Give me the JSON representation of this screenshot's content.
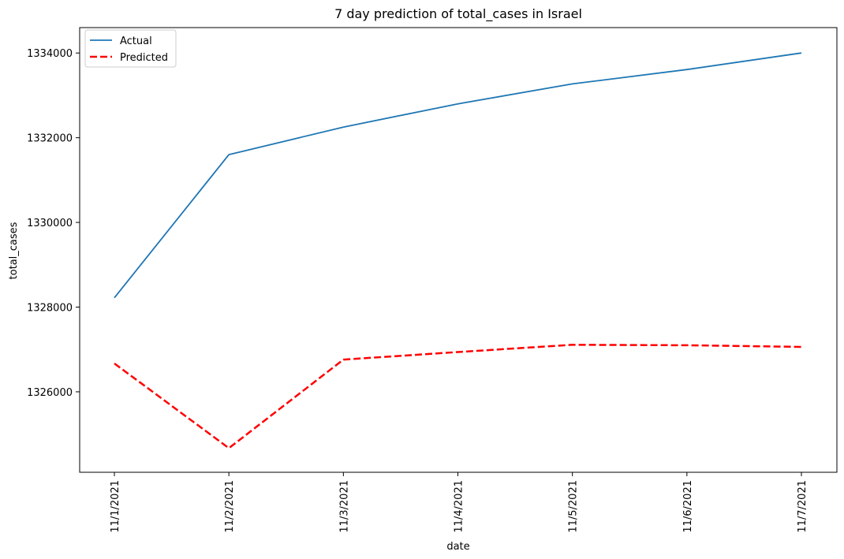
{
  "chart_data": {
    "type": "line",
    "title": "7 day prediction of total_cases in Israel",
    "xlabel": "date",
    "ylabel": "total_cases",
    "categories": [
      "11/1/2021",
      "11/2/2021",
      "11/3/2021",
      "11/4/2021",
      "11/5/2021",
      "11/6/2021",
      "11/7/2021"
    ],
    "y_ticks": [
      1326000,
      1328000,
      1330000,
      1332000,
      1334000
    ],
    "ylim": [
      1324100,
      1334600
    ],
    "legend": {
      "placement": "upper-left"
    },
    "grid": false,
    "series": [
      {
        "name": "Actual",
        "color": "#1f77b4",
        "style": "solid",
        "values": [
          1328220,
          1331600,
          1332250,
          1332800,
          1333270,
          1333610,
          1334000
        ]
      },
      {
        "name": "Predicted",
        "color": "#ff0000",
        "style": "dashed",
        "values": [
          1326670,
          1324670,
          1326760,
          1326940,
          1327110,
          1327100,
          1327060
        ]
      }
    ]
  }
}
